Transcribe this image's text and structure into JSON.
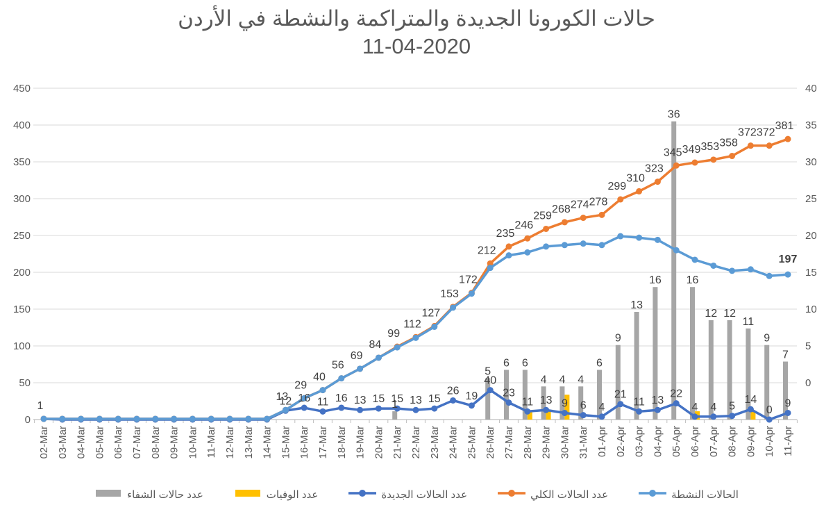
{
  "title": {
    "line1": "حالات الكورونا الجديدة والمتراكمة والنشطة في الأردن",
    "line2": "11-04-2020"
  },
  "colors": {
    "recovered_bar": "#A6A6A6",
    "deaths_bar": "#FFC000",
    "new_cases_line": "#4472C4",
    "total_cases_line": "#ED7D31",
    "active_cases_line": "#5B9BD5",
    "gridline": "#D9D9D9",
    "axis_line": "#BFBFBF",
    "axis_text": "#595959",
    "data_label": "#404040",
    "title_text": "#595959"
  },
  "chart_data": {
    "type": "combo (bar + line)",
    "title": "حالات الكورونا الجديدة والمتراكمة والنشطة في الأردن 11-04-2020",
    "grid": "horizontal only",
    "legend_position": "bottom",
    "left_axis": {
      "min": 0,
      "max": 450,
      "step": 50,
      "ticks": [
        "450",
        "400",
        "350",
        "300",
        "250",
        "200",
        "150",
        "100",
        "50",
        "0"
      ]
    },
    "right_axis": {
      "min": 0,
      "max": 40,
      "step": 5,
      "ticks": [
        "40",
        "35",
        "30",
        "25",
        "20",
        "15",
        "10",
        "5",
        "0"
      ]
    },
    "categories": [
      "02-Mar",
      "03-Mar",
      "04-Mar",
      "05-Mar",
      "06-Mar",
      "07-Mar",
      "08-Mar",
      "09-Mar",
      "10-Mar",
      "11-Mar",
      "12-Mar",
      "13-Mar",
      "14-Mar",
      "15-Mar",
      "16-Mar",
      "17-Mar",
      "18-Mar",
      "19-Mar",
      "20-Mar",
      "21-Mar",
      "22-Mar",
      "23-Mar",
      "24-Mar",
      "25-Mar",
      "26-Mar",
      "27-Mar",
      "28-Mar",
      "29-Mar",
      "30-Mar",
      "31-Mar",
      "01-Apr",
      "02-Apr",
      "03-Apr",
      "04-Apr",
      "05-Apr",
      "06-Apr",
      "07-Apr",
      "08-Apr",
      "09-Apr",
      "10-Apr",
      "11-Apr"
    ],
    "series": [
      {
        "id": "recovered",
        "name": "عدد حالات الشفاء",
        "type": "bar",
        "axis": "right",
        "color": "#A6A6A6",
        "values": [
          0,
          0,
          0,
          0,
          0,
          0,
          0,
          0,
          0,
          0,
          0,
          0,
          0,
          0,
          0,
          0,
          0,
          0,
          0,
          1,
          0,
          0,
          0,
          0,
          5,
          6,
          6,
          4,
          4,
          4,
          6,
          9,
          13,
          16,
          36,
          16,
          12,
          12,
          11,
          9,
          7
        ],
        "labels": [
          "",
          "",
          "",
          "",
          "",
          "",
          "",
          "",
          "",
          "",
          "",
          "",
          "",
          "",
          "",
          "",
          "",
          "",
          "",
          "1",
          "",
          "",
          "",
          "",
          "5",
          "6",
          "6",
          "4",
          "4",
          "4",
          "6",
          "9",
          "13",
          "16",
          "36",
          "16",
          "12",
          "12",
          "11",
          "9",
          "7"
        ]
      },
      {
        "id": "deaths",
        "name": "عدد الوفيات",
        "type": "bar",
        "axis": "right",
        "color": "#FFC000",
        "values": [
          0,
          0,
          0,
          0,
          0,
          0,
          0,
          0,
          0,
          0,
          0,
          0,
          0,
          0,
          0,
          0,
          0,
          0,
          0,
          0,
          0,
          0,
          0,
          0,
          0,
          0,
          1,
          1,
          3,
          0,
          0,
          0,
          0,
          0,
          0,
          1,
          0,
          0,
          1,
          0,
          0
        ],
        "labels": [
          "",
          "",
          "",
          "",
          "",
          "",
          "",
          "",
          "",
          "",
          "",
          "",
          "",
          "",
          "",
          "",
          "",
          "",
          "",
          "",
          "",
          "",
          "",
          "",
          "",
          "",
          "",
          "",
          "",
          "",
          "",
          "",
          "",
          "",
          "",
          "",
          "",
          "",
          "",
          "",
          ""
        ]
      },
      {
        "id": "new_cases",
        "name": "عدد الحالات الجديدة",
        "type": "line",
        "axis": "left",
        "color": "#4472C4",
        "values": [
          1,
          0,
          0,
          0,
          0,
          0,
          0,
          0,
          0,
          0,
          0,
          0,
          0,
          12,
          16,
          11,
          16,
          13,
          15,
          15,
          13,
          15,
          26,
          19,
          40,
          23,
          11,
          13,
          9,
          6,
          4,
          21,
          11,
          13,
          22,
          4,
          4,
          5,
          14,
          0,
          9
        ],
        "labels": [
          "",
          "",
          "",
          "",
          "",
          "",
          "",
          "",
          "",
          "",
          "",
          "",
          "",
          "12",
          "16",
          "11",
          "16",
          "13",
          "15",
          "15",
          "13",
          "15",
          "26",
          "19",
          "40",
          "23",
          "11",
          "13",
          "9",
          "6",
          "4",
          "21",
          "11",
          "13",
          "22",
          "4",
          "4",
          "5",
          "14",
          "0",
          "9"
        ]
      },
      {
        "id": "total_cases",
        "name": "عدد الحالات الكلي",
        "type": "line",
        "axis": "left",
        "color": "#ED7D31",
        "values": [
          1,
          1,
          1,
          1,
          1,
          1,
          1,
          1,
          1,
          1,
          1,
          1,
          1,
          13,
          29,
          40,
          56,
          69,
          84,
          99,
          112,
          127,
          153,
          172,
          212,
          235,
          246,
          259,
          268,
          274,
          278,
          299,
          310,
          323,
          345,
          349,
          353,
          358,
          372,
          372,
          381
        ],
        "labels": [
          "1",
          "",
          "",
          "",
          "",
          "",
          "",
          "",
          "",
          "",
          "",
          "",
          "",
          "13",
          "29",
          "40",
          "56",
          "69",
          "84",
          "99",
          "112",
          "127",
          "153",
          "172",
          "212",
          "235",
          "246",
          "259",
          "268",
          "274",
          "278",
          "299",
          "310",
          "323",
          "345",
          "349",
          "353",
          "358",
          "372",
          "372",
          "381"
        ]
      },
      {
        "id": "active_cases",
        "name": "الحالات النشطة",
        "type": "line",
        "axis": "left",
        "color": "#5B9BD5",
        "values": [
          1,
          1,
          1,
          1,
          1,
          1,
          1,
          1,
          1,
          1,
          1,
          1,
          1,
          13,
          29,
          40,
          56,
          69,
          84,
          98,
          111,
          126,
          152,
          171,
          206,
          223,
          227,
          235,
          237,
          239,
          237,
          249,
          247,
          244,
          230,
          217,
          209,
          202,
          204,
          195,
          197
        ],
        "labels": [
          "",
          "",
          "",
          "",
          "",
          "",
          "",
          "",
          "",
          "",
          "",
          "",
          "",
          "",
          "",
          "",
          "",
          "",
          "",
          "",
          "",
          "",
          "",
          "",
          "",
          "",
          "",
          "",
          "",
          "",
          "",
          "",
          "",
          "",
          "",
          "",
          "",
          "",
          "",
          "",
          "197"
        ]
      }
    ]
  }
}
